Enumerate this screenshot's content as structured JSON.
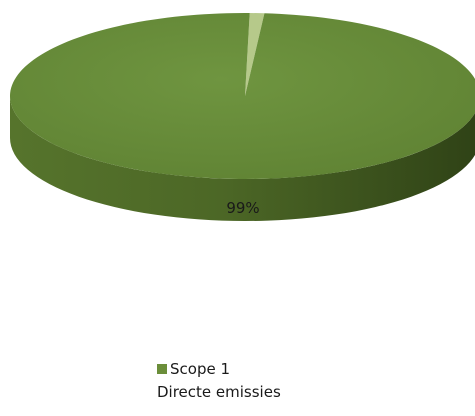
{
  "chart_data": {
    "type": "pie",
    "style": "3d",
    "slices": [
      {
        "label": "Scope 1",
        "sublabel": "Directe emissies",
        "value": 99,
        "display": "99%",
        "color": "#6b8e3a"
      },
      {
        "label": "",
        "sublabel": "",
        "value": 1,
        "display": "",
        "color": "#b6c98a"
      }
    ],
    "legend_position": "bottom",
    "legend": [
      {
        "line1": "Scope 1",
        "line2": "Directe emissies",
        "color": "#6b8e3a"
      }
    ]
  }
}
